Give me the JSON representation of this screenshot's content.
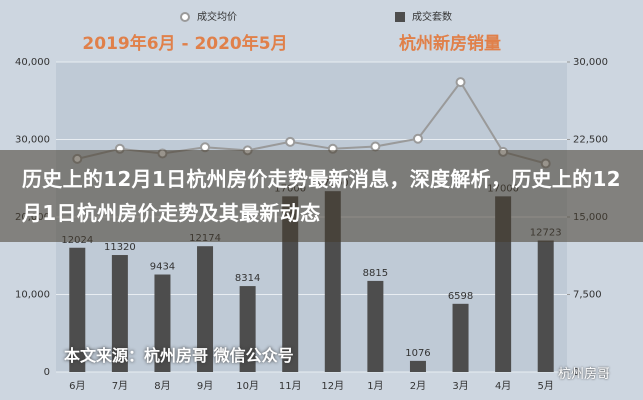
{
  "chart_data": {
    "type": "bar-line",
    "title": "2019年6月 - 2020年5月",
    "subtitle": "杭州新房销量",
    "categories": [
      "6月",
      "7月",
      "8月",
      "9月",
      "10月",
      "11月",
      "12月",
      "1月",
      "2月",
      "3月",
      "4月",
      "5月"
    ],
    "series": [
      {
        "name": "成交均价",
        "type": "line",
        "color": "#9a9a9a",
        "axis": "y",
        "values": [
          27500,
          28800,
          28200,
          29000,
          28600,
          29700,
          28800,
          29100,
          30100,
          37400,
          28400,
          26900
        ]
      },
      {
        "name": "成交套数",
        "type": "bar",
        "color": "#4d4d4d",
        "axis": "y2",
        "values": [
          12024,
          11320,
          9434,
          12174,
          8314,
          17000,
          17500,
          8815,
          1076,
          6598,
          17000,
          12723
        ]
      }
    ],
    "ylim": [
      0,
      40000
    ],
    "yticks": [
      {
        "value": 0,
        "label": "0"
      },
      {
        "value": 10000,
        "label": "10,000"
      },
      {
        "value": 20000,
        "label": "20,000"
      },
      {
        "value": 30000,
        "label": "30,000"
      },
      {
        "value": 40000,
        "label": "40,000"
      }
    ],
    "y2lim": [
      0,
      30000
    ],
    "y2ticks": [
      {
        "value": 0,
        "label": "0"
      },
      {
        "value": 7500,
        "label": "7,500"
      },
      {
        "value": 15000,
        "label": "15,000"
      },
      {
        "value": 22500,
        "label": "22,500"
      },
      {
        "value": 30000,
        "label": "30,000"
      }
    ],
    "grid": true
  },
  "overlay": {
    "headline": "历史上的12月1日杭州房价走势最新消息，深度解析，历史上的12月1日杭州房价走势及其最新动态",
    "source": "本文来源：杭州房哥 微信公众号",
    "watermark": "杭州房哥"
  }
}
